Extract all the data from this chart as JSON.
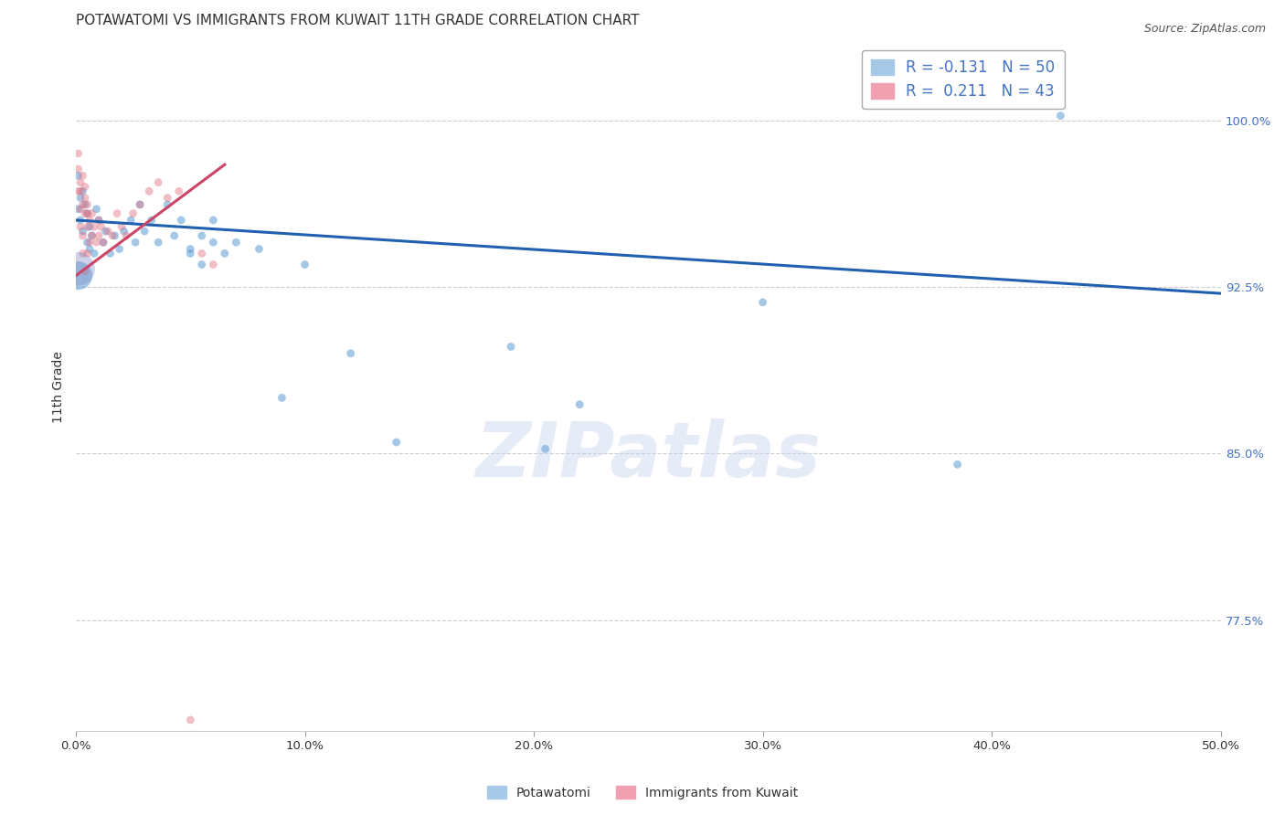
{
  "title": "POTAWATOMI VS IMMIGRANTS FROM KUWAIT 11TH GRADE CORRELATION CHART",
  "source": "Source: ZipAtlas.com",
  "ylabel": "11th Grade",
  "watermark": "ZIPatlas",
  "legend_line1": "R = -0.131   N = 50",
  "legend_line2": "R =  0.211   N = 43",
  "xlim": [
    0.0,
    0.5
  ],
  "ylim": [
    0.725,
    1.035
  ],
  "yticks": [
    0.775,
    0.85,
    0.925,
    1.0
  ],
  "ytick_labels": [
    "77.5%",
    "85.0%",
    "92.5%",
    "100.0%"
  ],
  "xticks": [
    0.0,
    0.1,
    0.2,
    0.3,
    0.4,
    0.5
  ],
  "xtick_labels": [
    "0.0%",
    "10.0%",
    "20.0%",
    "30.0%",
    "40.0%",
    "50.0%"
  ],
  "blue_scatter_x": [
    0.001,
    0.001,
    0.002,
    0.002,
    0.003,
    0.003,
    0.004,
    0.005,
    0.005,
    0.006,
    0.006,
    0.007,
    0.008,
    0.009,
    0.01,
    0.012,
    0.013,
    0.015,
    0.017,
    0.019,
    0.021,
    0.024,
    0.026,
    0.028,
    0.03,
    0.033,
    0.036,
    0.04,
    0.043,
    0.046,
    0.05,
    0.055,
    0.06,
    0.065,
    0.07,
    0.08,
    0.09,
    0.1,
    0.12,
    0.14,
    0.19,
    0.205,
    0.22,
    0.3,
    0.385,
    0.43,
    0.05,
    0.055,
    0.06,
    0.001
  ],
  "blue_scatter_y": [
    0.975,
    0.96,
    0.965,
    0.955,
    0.968,
    0.95,
    0.962,
    0.958,
    0.945,
    0.952,
    0.942,
    0.948,
    0.94,
    0.96,
    0.955,
    0.945,
    0.95,
    0.94,
    0.948,
    0.942,
    0.95,
    0.955,
    0.945,
    0.962,
    0.95,
    0.955,
    0.945,
    0.962,
    0.948,
    0.955,
    0.942,
    0.948,
    0.955,
    0.94,
    0.945,
    0.942,
    0.875,
    0.935,
    0.895,
    0.855,
    0.898,
    0.852,
    0.872,
    0.918,
    0.845,
    1.002,
    0.94,
    0.935,
    0.945,
    0.93
  ],
  "blue_scatter_sizes": [
    40,
    40,
    40,
    40,
    40,
    40,
    40,
    40,
    40,
    40,
    40,
    40,
    40,
    40,
    40,
    40,
    40,
    40,
    40,
    40,
    40,
    40,
    40,
    40,
    40,
    40,
    40,
    40,
    40,
    40,
    40,
    40,
    40,
    40,
    40,
    40,
    40,
    40,
    40,
    40,
    40,
    40,
    40,
    40,
    40,
    40,
    40,
    40,
    40,
    500
  ],
  "pink_scatter_x": [
    0.001,
    0.001,
    0.001,
    0.002,
    0.002,
    0.002,
    0.002,
    0.003,
    0.003,
    0.003,
    0.004,
    0.004,
    0.004,
    0.005,
    0.005,
    0.005,
    0.005,
    0.006,
    0.006,
    0.007,
    0.007,
    0.008,
    0.009,
    0.01,
    0.01,
    0.011,
    0.012,
    0.014,
    0.016,
    0.018,
    0.02,
    0.022,
    0.025,
    0.028,
    0.032,
    0.036,
    0.04,
    0.045,
    0.05,
    0.055,
    0.06,
    0.003,
    0.004
  ],
  "pink_scatter_y": [
    0.985,
    0.978,
    0.968,
    0.972,
    0.96,
    0.968,
    0.952,
    0.975,
    0.962,
    0.948,
    0.97,
    0.958,
    0.965,
    0.962,
    0.952,
    0.958,
    0.94,
    0.955,
    0.945,
    0.958,
    0.948,
    0.952,
    0.945,
    0.955,
    0.948,
    0.952,
    0.945,
    0.95,
    0.948,
    0.958,
    0.952,
    0.948,
    0.958,
    0.962,
    0.968,
    0.972,
    0.965,
    0.968,
    0.73,
    0.94,
    0.935,
    0.94,
    0.932
  ],
  "pink_scatter_sizes": [
    40,
    40,
    40,
    40,
    40,
    40,
    40,
    40,
    40,
    40,
    40,
    40,
    40,
    40,
    40,
    40,
    40,
    40,
    40,
    40,
    40,
    40,
    40,
    40,
    40,
    40,
    40,
    40,
    40,
    40,
    40,
    40,
    40,
    40,
    40,
    40,
    40,
    40,
    40,
    40,
    40,
    40,
    40
  ],
  "blue_trend_x": [
    0.0,
    0.5
  ],
  "blue_trend_y": [
    0.955,
    0.922
  ],
  "pink_trend_x": [
    0.0,
    0.065
  ],
  "pink_trend_y": [
    0.93,
    0.98
  ],
  "blue_color": "#5b9bd5",
  "pink_color": "#e07080",
  "blue_line_color": "#2060b0",
  "pink_line_color": "#cc4466",
  "grid_color": "#cccccc",
  "background_color": "#ffffff",
  "title_fontsize": 11,
  "axis_label_fontsize": 10,
  "tick_fontsize": 9.5,
  "legend_fontsize": 12
}
